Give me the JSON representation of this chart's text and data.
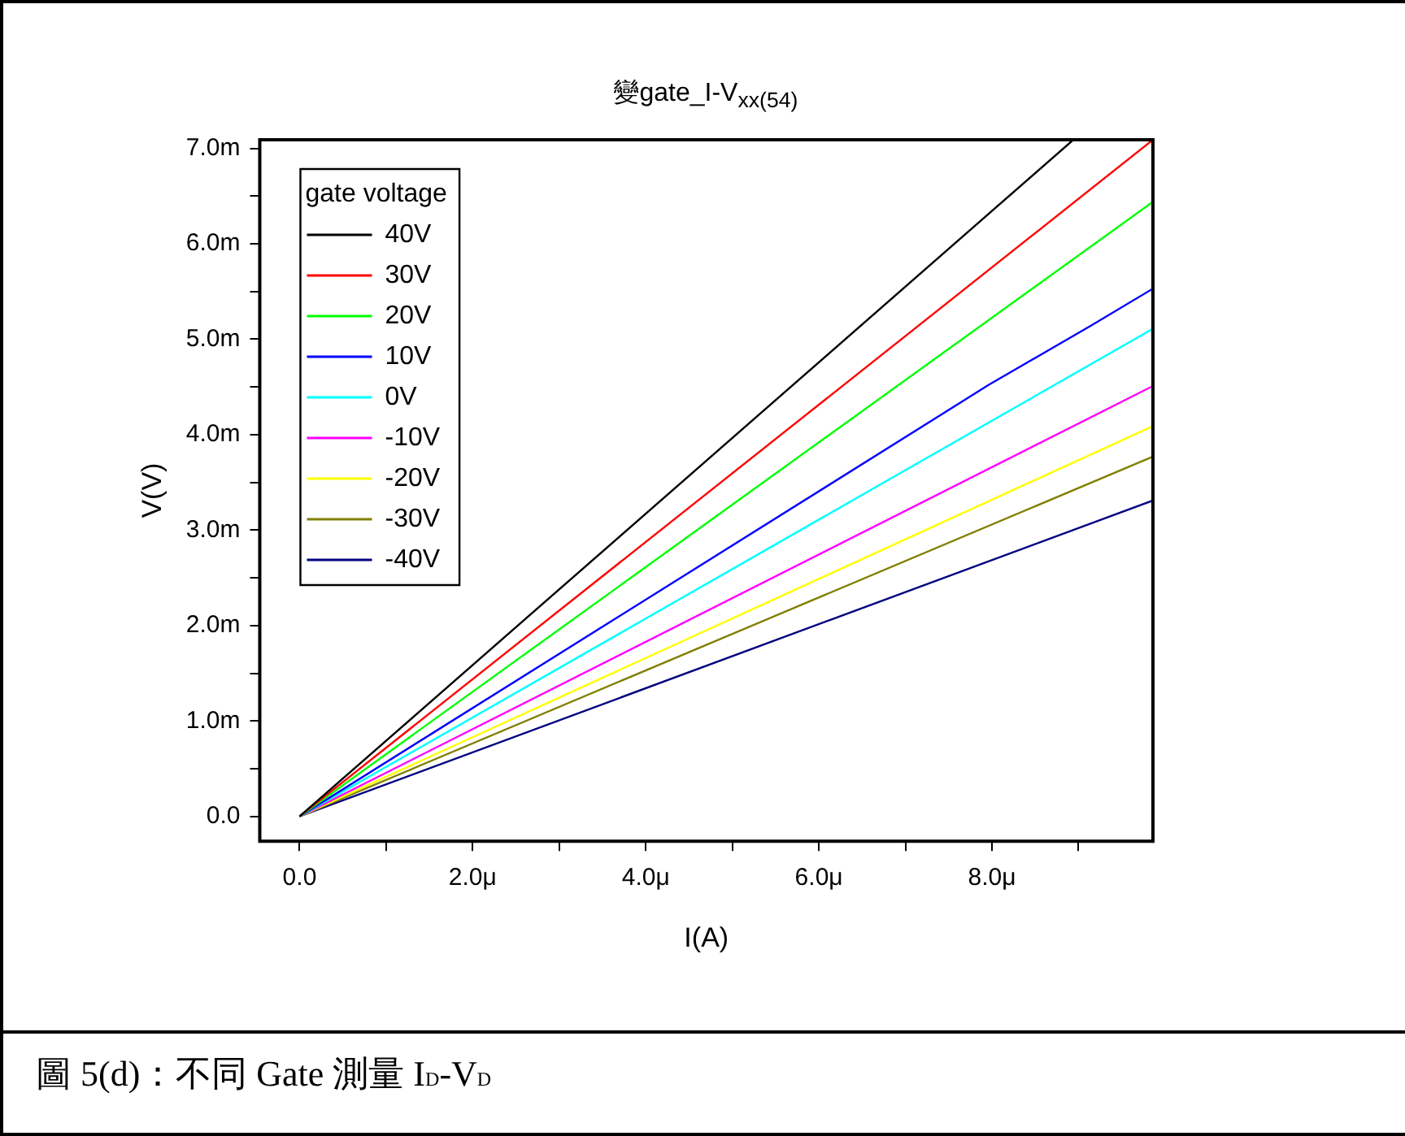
{
  "chart_data": {
    "type": "line",
    "title": "變gate_I-V$_{xx(54)}$",
    "xlabel": "I(A)",
    "ylabel": "V(V)",
    "legend_title": "gate voltage",
    "legend": "top left",
    "grid": false,
    "marker": "none",
    "line_style": "solid",
    "xlim": [
      -0.46,
      9.86
    ],
    "ylim": [
      -0.26,
      7.09
    ],
    "xticks": [
      {
        "value": 0,
        "label": "0.0"
      },
      {
        "value": 1,
        "label": null
      },
      {
        "value": 2,
        "label": "2.0μ"
      },
      {
        "value": 3,
        "label": null
      },
      {
        "value": 4,
        "label": "4.0μ"
      },
      {
        "value": 5,
        "label": null
      },
      {
        "value": 6,
        "label": "6.0μ"
      },
      {
        "value": 7,
        "label": null
      },
      {
        "value": 8,
        "label": "8.0μ"
      },
      {
        "value": 9,
        "label": null
      }
    ],
    "yticks": [
      {
        "value": 0,
        "label": "0.0"
      },
      {
        "value": 0.5,
        "label": null
      },
      {
        "value": 1,
        "label": "1.0m"
      },
      {
        "value": 1.5,
        "label": null
      },
      {
        "value": 2,
        "label": "2.0m"
      },
      {
        "value": 2.5,
        "label": null
      },
      {
        "value": 3,
        "label": "3.0m"
      },
      {
        "value": 3.5,
        "label": null
      },
      {
        "value": 4,
        "label": "4.0m"
      },
      {
        "value": 4.5,
        "label": null
      },
      {
        "value": 5,
        "label": "5.0m"
      },
      {
        "value": 5.5,
        "label": null
      },
      {
        "value": 6,
        "label": "6.0m"
      },
      {
        "value": 6.5,
        "label": null
      },
      {
        "value": 7,
        "label": "7.0m"
      }
    ],
    "series": [
      {
        "name": "40V",
        "color": "#000000",
        "x": [
          0,
          8.94
        ],
        "values": [
          0,
          7.09
        ]
      },
      {
        "name": "30V",
        "color": "#ff0000",
        "x": [
          0,
          9.86
        ],
        "values": [
          0,
          7.09
        ]
      },
      {
        "name": "20V",
        "color": "#00ff00",
        "x": [
          0,
          9.86
        ],
        "values": [
          0,
          6.44
        ]
      },
      {
        "name": "10V",
        "color": "#0000ff",
        "x": [
          0,
          7.96,
          9.14,
          9.86
        ],
        "values": [
          0,
          4.52,
          5.14,
          5.53
        ]
      },
      {
        "name": "0V",
        "color": "#00ffff",
        "x": [
          0,
          9.86
        ],
        "values": [
          0,
          5.11
        ]
      },
      {
        "name": "-10V",
        "color": "#ff00ff",
        "x": [
          0,
          9.86
        ],
        "values": [
          0,
          4.51
        ]
      },
      {
        "name": "-20V",
        "color": "#ffff00",
        "x": [
          0,
          9.86
        ],
        "values": [
          0,
          4.09
        ]
      },
      {
        "name": "-30V",
        "color": "#808000",
        "x": [
          0,
          9.86
        ],
        "values": [
          0,
          3.77
        ]
      },
      {
        "name": "-40V",
        "color": "#000080",
        "x": [
          0,
          9.86
        ],
        "values": [
          0,
          3.31
        ]
      }
    ],
    "annotations": [
      "圖 5(d)：不同 Gate 測量 I$_{D}$-V$_{D}$"
    ]
  }
}
